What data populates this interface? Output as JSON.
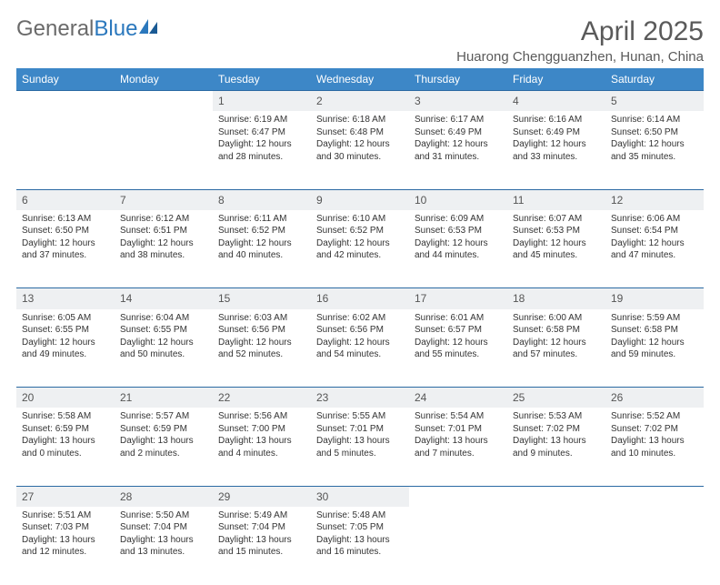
{
  "logo": {
    "part1": "General",
    "part2": "Blue"
  },
  "title": "April 2025",
  "location": "Huarong Chengguanzhen, Hunan, China",
  "colors": {
    "header_bg": "#3d87c7",
    "header_text": "#ffffff",
    "daynum_bg": "#eef0f2",
    "row_divider": "#2b6aa3",
    "body_text": "#333333",
    "title_text": "#5a5a5a",
    "logo_gray": "#6a6a6a",
    "logo_blue": "#2b78bd"
  },
  "weekdays": [
    "Sunday",
    "Monday",
    "Tuesday",
    "Wednesday",
    "Thursday",
    "Friday",
    "Saturday"
  ],
  "weeks": [
    [
      null,
      null,
      {
        "n": "1",
        "sr": "6:19 AM",
        "ss": "6:47 PM",
        "dl": "12 hours and 28 minutes."
      },
      {
        "n": "2",
        "sr": "6:18 AM",
        "ss": "6:48 PM",
        "dl": "12 hours and 30 minutes."
      },
      {
        "n": "3",
        "sr": "6:17 AM",
        "ss": "6:49 PM",
        "dl": "12 hours and 31 minutes."
      },
      {
        "n": "4",
        "sr": "6:16 AM",
        "ss": "6:49 PM",
        "dl": "12 hours and 33 minutes."
      },
      {
        "n": "5",
        "sr": "6:14 AM",
        "ss": "6:50 PM",
        "dl": "12 hours and 35 minutes."
      }
    ],
    [
      {
        "n": "6",
        "sr": "6:13 AM",
        "ss": "6:50 PM",
        "dl": "12 hours and 37 minutes."
      },
      {
        "n": "7",
        "sr": "6:12 AM",
        "ss": "6:51 PM",
        "dl": "12 hours and 38 minutes."
      },
      {
        "n": "8",
        "sr": "6:11 AM",
        "ss": "6:52 PM",
        "dl": "12 hours and 40 minutes."
      },
      {
        "n": "9",
        "sr": "6:10 AM",
        "ss": "6:52 PM",
        "dl": "12 hours and 42 minutes."
      },
      {
        "n": "10",
        "sr": "6:09 AM",
        "ss": "6:53 PM",
        "dl": "12 hours and 44 minutes."
      },
      {
        "n": "11",
        "sr": "6:07 AM",
        "ss": "6:53 PM",
        "dl": "12 hours and 45 minutes."
      },
      {
        "n": "12",
        "sr": "6:06 AM",
        "ss": "6:54 PM",
        "dl": "12 hours and 47 minutes."
      }
    ],
    [
      {
        "n": "13",
        "sr": "6:05 AM",
        "ss": "6:55 PM",
        "dl": "12 hours and 49 minutes."
      },
      {
        "n": "14",
        "sr": "6:04 AM",
        "ss": "6:55 PM",
        "dl": "12 hours and 50 minutes."
      },
      {
        "n": "15",
        "sr": "6:03 AM",
        "ss": "6:56 PM",
        "dl": "12 hours and 52 minutes."
      },
      {
        "n": "16",
        "sr": "6:02 AM",
        "ss": "6:56 PM",
        "dl": "12 hours and 54 minutes."
      },
      {
        "n": "17",
        "sr": "6:01 AM",
        "ss": "6:57 PM",
        "dl": "12 hours and 55 minutes."
      },
      {
        "n": "18",
        "sr": "6:00 AM",
        "ss": "6:58 PM",
        "dl": "12 hours and 57 minutes."
      },
      {
        "n": "19",
        "sr": "5:59 AM",
        "ss": "6:58 PM",
        "dl": "12 hours and 59 minutes."
      }
    ],
    [
      {
        "n": "20",
        "sr": "5:58 AM",
        "ss": "6:59 PM",
        "dl": "13 hours and 0 minutes."
      },
      {
        "n": "21",
        "sr": "5:57 AM",
        "ss": "6:59 PM",
        "dl": "13 hours and 2 minutes."
      },
      {
        "n": "22",
        "sr": "5:56 AM",
        "ss": "7:00 PM",
        "dl": "13 hours and 4 minutes."
      },
      {
        "n": "23",
        "sr": "5:55 AM",
        "ss": "7:01 PM",
        "dl": "13 hours and 5 minutes."
      },
      {
        "n": "24",
        "sr": "5:54 AM",
        "ss": "7:01 PM",
        "dl": "13 hours and 7 minutes."
      },
      {
        "n": "25",
        "sr": "5:53 AM",
        "ss": "7:02 PM",
        "dl": "13 hours and 9 minutes."
      },
      {
        "n": "26",
        "sr": "5:52 AM",
        "ss": "7:02 PM",
        "dl": "13 hours and 10 minutes."
      }
    ],
    [
      {
        "n": "27",
        "sr": "5:51 AM",
        "ss": "7:03 PM",
        "dl": "13 hours and 12 minutes."
      },
      {
        "n": "28",
        "sr": "5:50 AM",
        "ss": "7:04 PM",
        "dl": "13 hours and 13 minutes."
      },
      {
        "n": "29",
        "sr": "5:49 AM",
        "ss": "7:04 PM",
        "dl": "13 hours and 15 minutes."
      },
      {
        "n": "30",
        "sr": "5:48 AM",
        "ss": "7:05 PM",
        "dl": "13 hours and 16 minutes."
      },
      null,
      null,
      null
    ]
  ],
  "labels": {
    "sunrise": "Sunrise: ",
    "sunset": "Sunset: ",
    "daylight": "Daylight: "
  }
}
